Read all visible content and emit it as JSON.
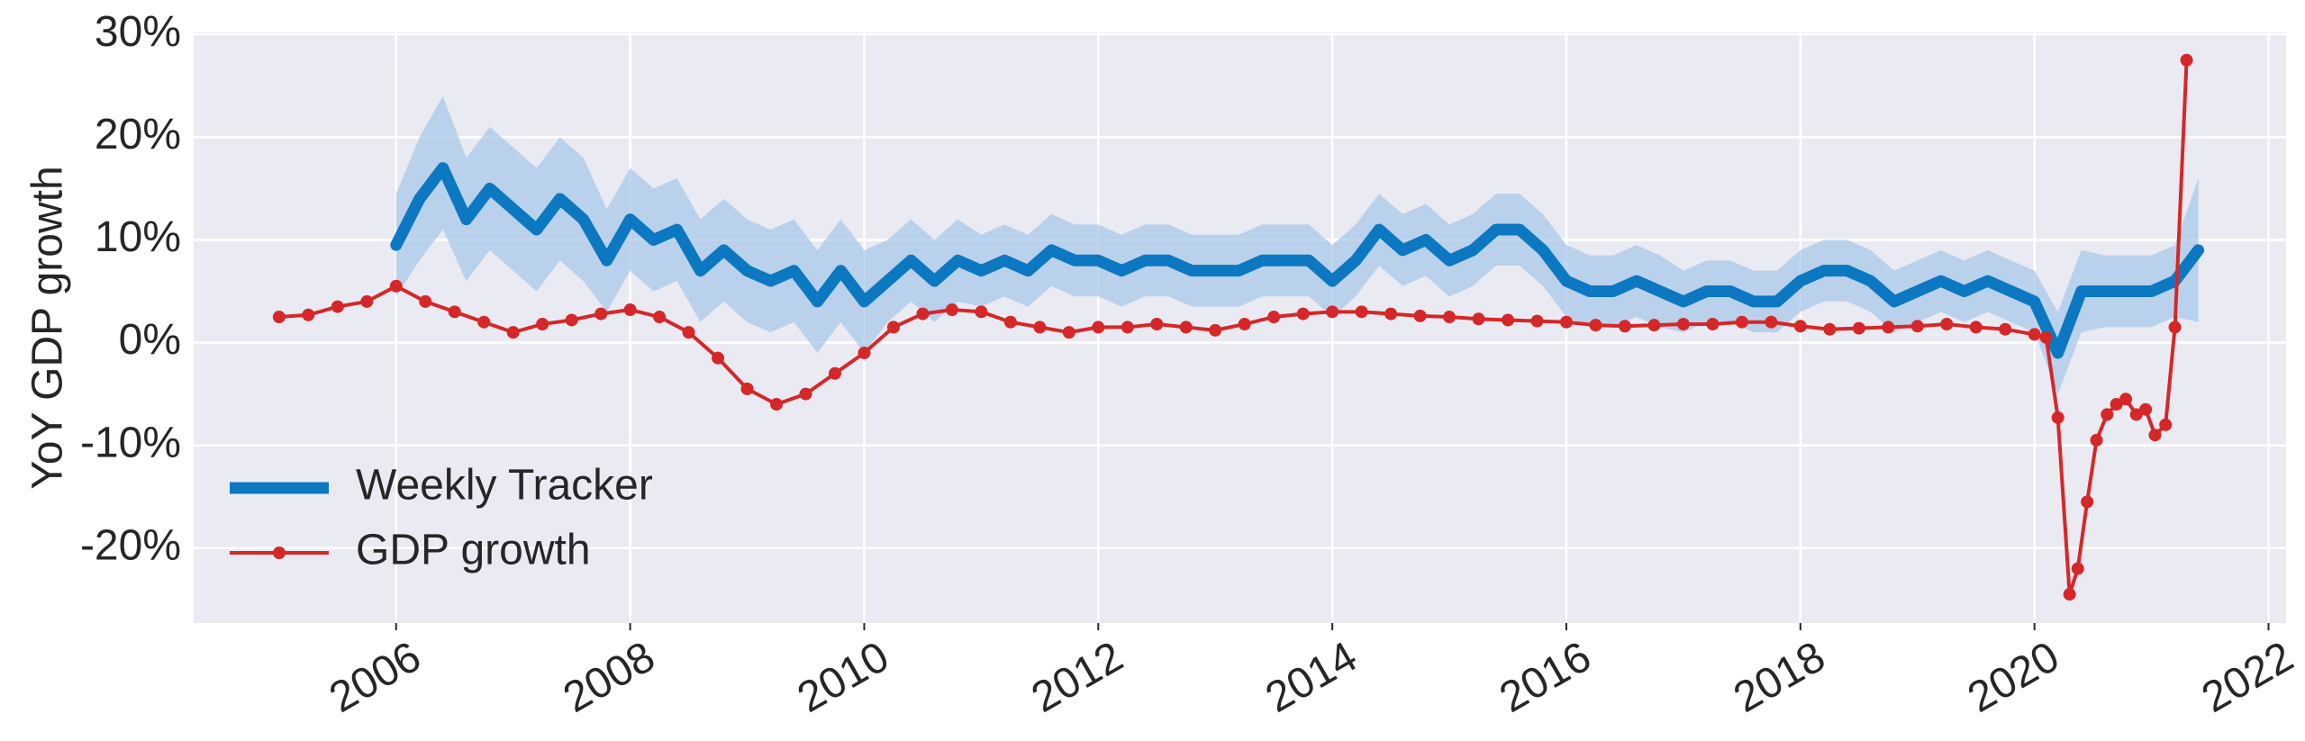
{
  "chart_data": {
    "type": "line",
    "y_label": "YoY GDP growth",
    "xlim": [
      2004.27,
      2022.15
    ],
    "xticks": [
      2006,
      2008,
      2010,
      2012,
      2014,
      2016,
      2018,
      2020,
      2022
    ],
    "ylim": [
      -27.3,
      30.2
    ],
    "yticks": [
      {
        "value": -20,
        "label": "-20%"
      },
      {
        "value": -10,
        "label": "-10%"
      },
      {
        "value": 0,
        "label": "0%"
      },
      {
        "value": 10,
        "label": "10%"
      },
      {
        "value": 20,
        "label": "20%"
      },
      {
        "value": 30,
        "label": "30%"
      }
    ],
    "grid": true,
    "legend": "lower left",
    "series": [
      {
        "name": "Weekly Tracker",
        "color": "#0b78c1",
        "band_color": "#a9c8e8",
        "x": [
          2006.0,
          2006.2,
          2006.4,
          2006.6,
          2006.8,
          2007.0,
          2007.2,
          2007.4,
          2007.6,
          2007.8,
          2008.0,
          2008.2,
          2008.4,
          2008.6,
          2008.8,
          2009.0,
          2009.2,
          2009.4,
          2009.6,
          2009.8,
          2010.0,
          2010.2,
          2010.4,
          2010.6,
          2010.8,
          2011.0,
          2011.2,
          2011.4,
          2011.6,
          2011.8,
          2012.0,
          2012.2,
          2012.4,
          2012.6,
          2012.8,
          2013.0,
          2013.2,
          2013.4,
          2013.6,
          2013.8,
          2014.0,
          2014.2,
          2014.4,
          2014.6,
          2014.8,
          2015.0,
          2015.2,
          2015.4,
          2015.6,
          2015.8,
          2016.0,
          2016.2,
          2016.4,
          2016.6,
          2016.8,
          2017.0,
          2017.2,
          2017.4,
          2017.6,
          2017.8,
          2018.0,
          2018.2,
          2018.4,
          2018.6,
          2018.8,
          2019.0,
          2019.2,
          2019.4,
          2019.6,
          2019.8,
          2020.0,
          2020.2,
          2020.4,
          2020.6,
          2020.8,
          2021.0,
          2021.2,
          2021.4
        ],
        "values": [
          9.5,
          14,
          17,
          12,
          15,
          13,
          11,
          14,
          12,
          8,
          12,
          10,
          11,
          7,
          9,
          7,
          6,
          7,
          4,
          7,
          4,
          6,
          8,
          6,
          8,
          7,
          8,
          7,
          9,
          8,
          8,
          7,
          8,
          8,
          7,
          7,
          7,
          8,
          8,
          8,
          6,
          8,
          11,
          9,
          10,
          8,
          9,
          11,
          11,
          9,
          6,
          5,
          5,
          6,
          5,
          4,
          5,
          5,
          4,
          4,
          6,
          7,
          7,
          6,
          4,
          5,
          6,
          5,
          6,
          5,
          4,
          -1,
          5,
          5,
          5,
          5,
          6,
          9
        ],
        "lower": [
          4.5,
          8,
          11,
          6,
          9,
          7,
          5,
          8,
          6,
          3,
          7,
          5,
          6,
          2,
          4,
          2,
          1,
          2,
          -1,
          2,
          -1,
          2,
          4,
          2,
          4,
          3.5,
          4.5,
          3.5,
          5.5,
          4.5,
          4.5,
          3.5,
          4.5,
          4.5,
          3.5,
          3.5,
          3.5,
          4.5,
          4.5,
          4.5,
          2.5,
          4.5,
          7.5,
          5.5,
          6.5,
          4.5,
          5.5,
          7.5,
          7.5,
          5.5,
          2.5,
          1.5,
          1.5,
          2.5,
          1.5,
          1,
          2,
          2,
          1,
          1,
          3,
          4,
          4,
          3,
          1,
          2,
          3,
          2,
          3,
          2,
          1,
          -5,
          1,
          1.5,
          1.5,
          1.5,
          2.5,
          2
        ],
        "upper": [
          14.5,
          20,
          24,
          18,
          21,
          19,
          17,
          20,
          18,
          13,
          17,
          15,
          16,
          12,
          14,
          12,
          11,
          12,
          9,
          12,
          9,
          10,
          12,
          10,
          12,
          10.5,
          11.5,
          10.5,
          12.5,
          11.5,
          11.5,
          10.5,
          11.5,
          11.5,
          10.5,
          10.5,
          10.5,
          11.5,
          11.5,
          11.5,
          9.5,
          11.5,
          14.5,
          12.5,
          13.5,
          11.5,
          12.5,
          14.5,
          14.5,
          12.5,
          9.5,
          8.5,
          8.5,
          9.5,
          8.5,
          7,
          8,
          8,
          7,
          7,
          9,
          10,
          10,
          9,
          7,
          8,
          9,
          8,
          9,
          8,
          7,
          3,
          9,
          8.5,
          8.5,
          8.5,
          9.5,
          16
        ]
      },
      {
        "name": "GDP growth",
        "color": "#d62728",
        "x": [
          2005.0,
          2005.25,
          2005.5,
          2005.75,
          2006.0,
          2006.25,
          2006.5,
          2006.75,
          2007.0,
          2007.25,
          2007.5,
          2007.75,
          2008.0,
          2008.25,
          2008.5,
          2008.75,
          2009.0,
          2009.25,
          2009.5,
          2009.75,
          2010.0,
          2010.25,
          2010.5,
          2010.75,
          2011.0,
          2011.25,
          2011.5,
          2011.75,
          2012.0,
          2012.25,
          2012.5,
          2012.75,
          2013.0,
          2013.25,
          2013.5,
          2013.75,
          2014.0,
          2014.25,
          2014.5,
          2014.75,
          2015.0,
          2015.25,
          2015.5,
          2015.75,
          2016.0,
          2016.25,
          2016.5,
          2016.75,
          2017.0,
          2017.25,
          2017.5,
          2017.75,
          2018.0,
          2018.25,
          2018.5,
          2018.75,
          2019.0,
          2019.25,
          2019.5,
          2019.75,
          2020.0,
          2020.1,
          2020.2,
          2020.3,
          2020.37,
          2020.45,
          2020.53,
          2020.62,
          2020.7,
          2020.78,
          2020.87,
          2020.95,
          2021.03,
          2021.12,
          2021.2,
          2021.3
        ],
        "values": [
          2.5,
          2.7,
          3.5,
          4.0,
          5.5,
          4.0,
          3.0,
          2.0,
          1.0,
          1.8,
          2.2,
          2.8,
          3.2,
          2.5,
          1.0,
          -1.5,
          -4.5,
          -6.0,
          -5.0,
          -3.0,
          -1.0,
          1.5,
          2.8,
          3.2,
          3.0,
          2.0,
          1.5,
          1.0,
          1.5,
          1.5,
          1.8,
          1.5,
          1.2,
          1.8,
          2.5,
          2.8,
          3.0,
          3.0,
          2.8,
          2.6,
          2.5,
          2.3,
          2.2,
          2.1,
          2.0,
          1.7,
          1.6,
          1.7,
          1.8,
          1.8,
          2.0,
          2.0,
          1.6,
          1.3,
          1.4,
          1.5,
          1.6,
          1.8,
          1.5,
          1.3,
          0.8,
          0.5,
          -7.3,
          -24.5,
          -22.0,
          -15.5,
          -9.5,
          -7.0,
          -6.0,
          -5.5,
          -7.0,
          -6.5,
          -9.0,
          -8.0,
          1.5,
          27.5
        ]
      }
    ]
  }
}
